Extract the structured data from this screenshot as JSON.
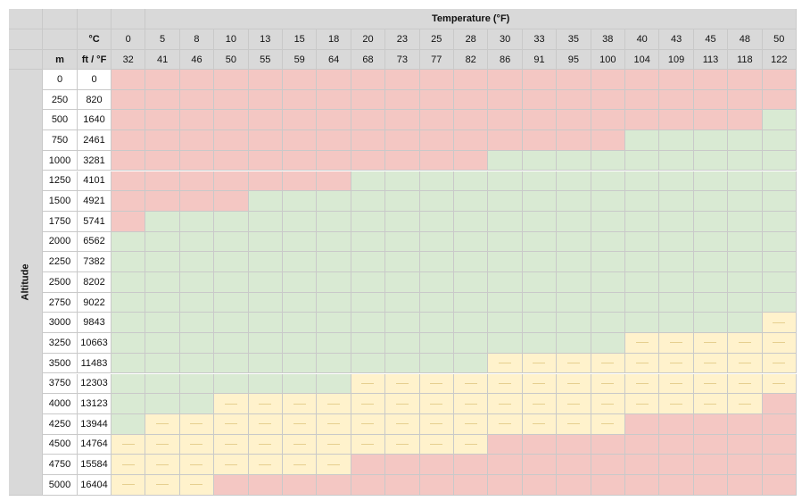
{
  "headers": {
    "temperature_title": "Temperature (°F)",
    "celsius_label": "°C",
    "meters_label": "m",
    "feet_fahrenheit_label": "ft / °F",
    "altitude_label": "Altitude"
  },
  "celsius": [
    "0",
    "5",
    "8",
    "10",
    "13",
    "15",
    "18",
    "20",
    "23",
    "25",
    "28",
    "30",
    "33",
    "35",
    "38",
    "40",
    "43",
    "45",
    "48",
    "50"
  ],
  "fahrenheit": [
    "32",
    "41",
    "46",
    "50",
    "55",
    "59",
    "64",
    "68",
    "73",
    "77",
    "82",
    "86",
    "91",
    "95",
    "100",
    "104",
    "109",
    "113",
    "118",
    "122"
  ],
  "altitude_m": [
    "0",
    "250",
    "500",
    "750",
    "1000",
    "1250",
    "1500",
    "1750",
    "2000",
    "2250",
    "2500",
    "2750",
    "3000",
    "3250",
    "3500",
    "3750",
    "4000",
    "4250",
    "4500",
    "4750",
    "5000"
  ],
  "altitude_ft": [
    "0",
    "820",
    "1640",
    "2461",
    "3281",
    "4101",
    "4921",
    "5741",
    "6562",
    "7382",
    "8202",
    "9022",
    "9843",
    "10663",
    "11483",
    "12303",
    "13123",
    "13944",
    "14764",
    "15584",
    "16404"
  ],
  "colors": {
    "red": "#f4c7c3",
    "green": "#d9ead3",
    "yellow": "#fff2cc",
    "header": "#d9d9d9"
  },
  "grid_rows": [
    "RRRRRRRRRRRRRRRRRRRR",
    "RRRRRRRRRRRRRRRRRRRR",
    "RRRRRRRRRRRRRRRRRRRG",
    "RRRRRRRRRRRRRRRGGGGG",
    "RRRRRRRRRRRGGGGGGGGG",
    "RRRRRRRGGGGGGGGGGGGG",
    "RRRRGGGGGGGGGGGGGGGG",
    "RGGGGGGGGGGGGGGGGGGG",
    "GGGGGGGGGGGGGGGGGGGG",
    "GGGGGGGGGGGGGGGGGGGG",
    "GGGGGGGGGGGGGGGGGGGG",
    "GGGGGGGGGGGGGGGGGGGG",
    "GGGGGGGGGGGGGGGGGGGY",
    "GGGGGGGGGGGGGGGYYYYY",
    "GGGGGGGGGGGYYYYYYYYY",
    "GGGGGGGYYYYYYYYYYYYY",
    "GGGYYYYYYYYYYYYYYYYR",
    "GYYYYYYYYYYYYYYRRRRR",
    "YYYYYYYYYYYRRRRRRRRR",
    "YYYYYYYRRRRRRRRRRRRR",
    "YYYRRRRRRRRRRRRRRRRR"
  ]
}
